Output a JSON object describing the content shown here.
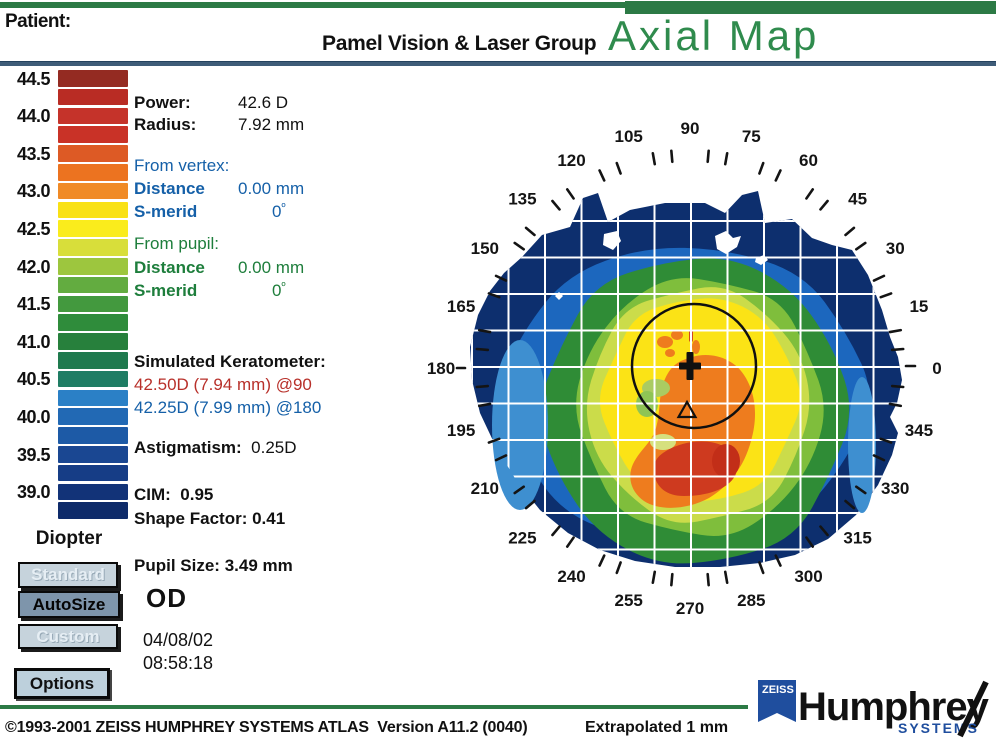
{
  "header": {
    "patient_label": "Patient:",
    "clinic": "Pamel Vision & Laser Group",
    "map_title": "Axial Map"
  },
  "scale": {
    "unit_label": "Diopter"
  },
  "readout": {
    "power_label": "Power:",
    "power_value": "42.6 D",
    "radius_label": "Radius:",
    "radius_value": "7.92 mm",
    "from_vertex": {
      "title": "From vertex:",
      "distance_label": "Distance",
      "distance_value": "0.00 mm",
      "s_merid_label": "S-merid",
      "s_merid_value": "0",
      "deg_sup": "º"
    },
    "from_pupil": {
      "title": "From pupil:",
      "distance_label": "Distance",
      "distance_value": "0.00 mm",
      "s_merid_label": "S-merid",
      "s_merid_value": "0",
      "deg_sup": "º"
    },
    "sim_k": {
      "title": "Simulated Keratometer:",
      "k1": "42.50D (7.94 mm) @90",
      "k2": "42.25D (7.99 mm) @180"
    },
    "astig_label": "Astigmatism:",
    "astig_value": "0.25D",
    "cim_label": "CIM:",
    "cim_value": "0.95",
    "shape_label": "Shape Factor:",
    "shape_value": "0.41",
    "pupil_size_label": "Pupil Size:",
    "pupil_size_value": "3.49 mm",
    "eye": "OD",
    "date": "04/08/02",
    "time": "08:58:18"
  },
  "buttons": {
    "standard": "Standard",
    "autosize": "AutoSize",
    "custom": "Custom",
    "options": "Options"
  },
  "footer": {
    "copyright": "©1993-2001 ZEISS HUMPHREY SYSTEMS ATLAS  Version A11.2 (0040)",
    "extrapolated": "Extrapolated 1 mm",
    "logo": {
      "zeiss": "ZEISS",
      "humphrey": "Humphrey",
      "systems": "SYSTEMS"
    }
  },
  "chart_data": {
    "type": "heatmap",
    "title": "Axial Map",
    "subtitle_clinic": "Pamel Vision & Laser Group",
    "units": "Diopter",
    "scale": {
      "bin_step_d": 0.25,
      "range_d": [
        38.75,
        44.5
      ],
      "swatches": [
        {
          "label": "44.5",
          "color": "#942B22"
        },
        {
          "label": null,
          "color": "#B92C24"
        },
        {
          "label": "44.0",
          "color": "#C5332A"
        },
        {
          "label": null,
          "color": "#C93227"
        },
        {
          "label": "43.5",
          "color": "#DD5A25"
        },
        {
          "label": null,
          "color": "#EC7320"
        },
        {
          "label": "43.0",
          "color": "#F08A26"
        },
        {
          "label": null,
          "color": "#F9E115"
        },
        {
          "label": "42.5",
          "color": "#FAEC1C"
        },
        {
          "label": null,
          "color": "#D8DE3A"
        },
        {
          "label": "42.0",
          "color": "#9DC63E"
        },
        {
          "label": null,
          "color": "#63AC40"
        },
        {
          "label": "41.5",
          "color": "#43993E"
        },
        {
          "label": null,
          "color": "#2F8C3B"
        },
        {
          "label": "41.0",
          "color": "#27803C"
        },
        {
          "label": null,
          "color": "#1F7A4E"
        },
        {
          "label": "40.5",
          "color": "#1F7D64"
        },
        {
          "label": null,
          "color": "#2B80C6"
        },
        {
          "label": "40.0",
          "color": "#2269B4"
        },
        {
          "label": null,
          "color": "#1D5AA6"
        },
        {
          "label": "39.5",
          "color": "#1A4792"
        },
        {
          "label": null,
          "color": "#163D86"
        },
        {
          "label": "39.0",
          "color": "#123378"
        },
        {
          "label": null,
          "color": "#0E2B6A"
        }
      ]
    },
    "meridian_degrees": [
      0,
      15,
      30,
      45,
      60,
      75,
      90,
      105,
      120,
      135,
      150,
      165,
      180,
      195,
      210,
      225,
      240,
      255,
      270,
      285,
      300,
      315,
      330,
      345
    ],
    "meridian_tick_step_deg": 5,
    "map_colors": {
      "navy": "#0D2F6E",
      "blue": "#1C67BE",
      "light_blue": "#3E8FD0",
      "green": "#2F8C36",
      "light_green": "#7FBE3C",
      "lime": "#CBDC4A",
      "yellow": "#FBE316",
      "orange": "#EE7C1E",
      "red": "#CE3A1F",
      "deep_red": "#C22E18"
    },
    "readings": {
      "power_d": 42.6,
      "radius_mm": 7.92,
      "from_vertex": {
        "distance_mm": 0.0,
        "s_merid_deg": 0
      },
      "from_pupil": {
        "distance_mm": 0.0,
        "s_merid_deg": 0
      },
      "sim_k": [
        {
          "power_d": 42.5,
          "radius_mm": 7.94,
          "axis_deg": 90
        },
        {
          "power_d": 42.25,
          "radius_mm": 7.99,
          "axis_deg": 180
        }
      ],
      "astigmatism_d": 0.25,
      "cim": 0.95,
      "shape_factor": 0.41,
      "pupil_size_mm": 3.49,
      "eye": "OD",
      "date": "04/08/02",
      "time": "08:58:18",
      "extrapolation": "Extrapolated 1 mm"
    },
    "pattern": "Concentric corneal power zones: navy periphery (~39D), blue (~40D), green rings (~41D), large central yellow zone (~42.5D) with orange-red inferior steepening (~43.5-44.5D) below and right of the vertex; black pupil outline circle, vertex cross marker and pupil-center triangle marker; white grid overlay and 0-345 degree meridian ring with 5-degree ticks."
  }
}
